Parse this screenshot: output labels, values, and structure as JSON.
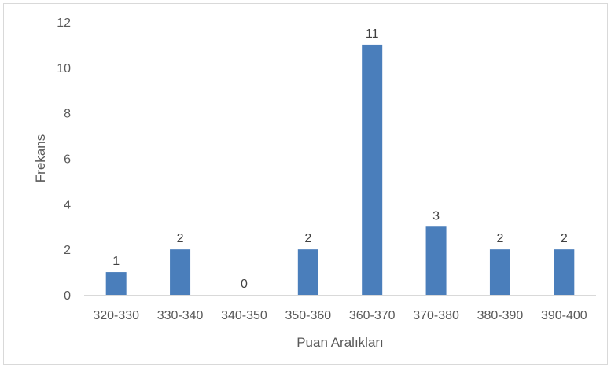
{
  "chart_data": {
    "type": "bar",
    "categories": [
      "320-330",
      "330-340",
      "340-350",
      "350-360",
      "360-370",
      "370-380",
      "380-390",
      "390-400"
    ],
    "values": [
      1,
      2,
      0,
      2,
      11,
      3,
      2,
      2
    ],
    "title": "",
    "xlabel": "Puan Aralıkları",
    "ylabel": "Frekans",
    "ylim": [
      0,
      12
    ],
    "yticks": [
      "0",
      "2",
      "4",
      "6",
      "8",
      "10",
      "12"
    ],
    "data_labels": [
      "1",
      "2",
      "0",
      "2",
      "11",
      "3",
      "2",
      "2"
    ],
    "grid": false,
    "legend": "none",
    "bar_color": "#4a7ebb"
  }
}
